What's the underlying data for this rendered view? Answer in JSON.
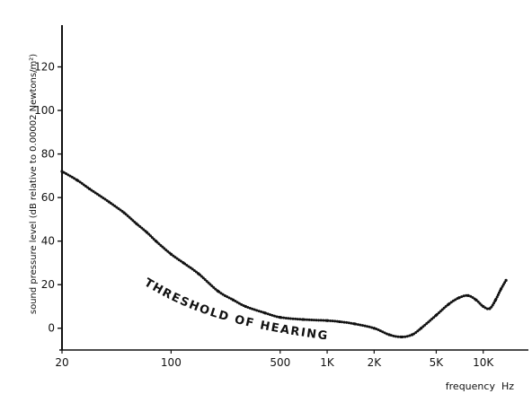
{
  "chart_data": {
    "type": "line",
    "title": "",
    "xlabel": "frequency  Hz",
    "ylabel": "sound pressure level (dB relative to 0.00002 Newtons/m²)",
    "x_scale": "log",
    "xlim": [
      20,
      20000
    ],
    "ylim": [
      -10,
      140
    ],
    "grid": false,
    "legend": "none",
    "x_ticks": [
      {
        "value": 20,
        "label": "20"
      },
      {
        "value": 100,
        "label": "100"
      },
      {
        "value": 500,
        "label": "500"
      },
      {
        "value": 1000,
        "label": "1K"
      },
      {
        "value": 2000,
        "label": "2K"
      },
      {
        "value": 5000,
        "label": "5K"
      },
      {
        "value": 10000,
        "label": "10K"
      }
    ],
    "y_ticks": [
      {
        "value": 0,
        "label": "0"
      },
      {
        "value": 20,
        "label": "20"
      },
      {
        "value": 40,
        "label": "40"
      },
      {
        "value": 60,
        "label": "60"
      },
      {
        "value": 80,
        "label": "80"
      },
      {
        "value": 100,
        "label": "100"
      },
      {
        "value": 120,
        "label": "120"
      }
    ],
    "series": [
      {
        "name": "",
        "x": [
          20,
          25,
          30,
          40,
          50,
          60,
          70,
          80,
          100,
          120,
          150,
          200,
          250,
          300,
          400,
          500,
          700,
          1000,
          1200,
          1500,
          2000,
          2500,
          3000,
          3500,
          4000,
          5000,
          6000,
          7000,
          8000,
          9000,
          10000,
          11000,
          12000,
          13000,
          14000
        ],
        "y": [
          72,
          68,
          64,
          58,
          53,
          48,
          44,
          40,
          34,
          30,
          25,
          17,
          13,
          10,
          7,
          5,
          4,
          3.5,
          3,
          2,
          0,
          -3,
          -4,
          -3,
          0,
          6,
          11,
          14,
          15,
          13,
          10,
          9,
          13,
          18,
          22
        ]
      }
    ],
    "annotations": [
      {
        "text": "THRESHOLD OF HEARING"
      }
    ],
    "color": "#111111"
  }
}
